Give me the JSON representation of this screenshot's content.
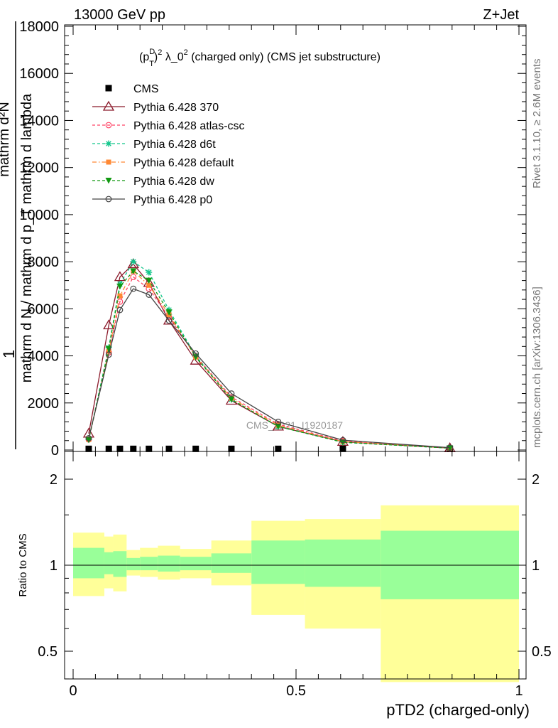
{
  "header": {
    "energy_label": "13000 GeV pp",
    "process_label": "Z+Jet",
    "rivet_label": "Rivet 3.1.10, ≥ 2.6M events",
    "mcplots_label": "mcplots.cern.ch [arXiv:1306.3436]",
    "watermark": "CMS_2021_I1920187"
  },
  "chart_data": [
    {
      "type": "line",
      "title_parts": {
        "p": "(p",
        "sup_d": "D",
        "sub_t": "T",
        "close": ")",
        "sup2": "2",
        "lambda": " λ_0",
        "sup3": "2",
        "rest": " (charged only) (CMS jet substructure)"
      },
      "ylabel_parts": {
        "one": "1",
        "denominator": "mathrm d N / mathrm d p_T mathrm d lambda",
        "numerator": "mathrm d²N"
      },
      "xlim": [
        0,
        1
      ],
      "ylim": [
        0,
        18000
      ],
      "y_ticks": [
        0,
        2000,
        4000,
        6000,
        8000,
        10000,
        12000,
        14000,
        16000,
        18000
      ],
      "y_tick_labels": [
        "0",
        "2000",
        "4000",
        "6000",
        "8000",
        "10000",
        "12000",
        "14000",
        "16000",
        "18000"
      ],
      "legend_position": "top-left",
      "series": [
        {
          "name": "CMS",
          "color": "#000000",
          "style": "data-square",
          "x": [
            0.035,
            0.08,
            0.105,
            0.135,
            0.17,
            0.215,
            0.275,
            0.355,
            0.46,
            0.605,
            0.845
          ],
          "y": [
            50,
            50,
            50,
            50,
            50,
            50,
            50,
            50,
            50,
            50,
            50
          ]
        },
        {
          "name": "Pythia 6.428 370",
          "color": "#8b1a2b",
          "style": "solid-triangle",
          "x": [
            0.035,
            0.08,
            0.105,
            0.135,
            0.17,
            0.215,
            0.275,
            0.355,
            0.46,
            0.605,
            0.845
          ],
          "y": [
            700,
            5300,
            7350,
            7900,
            7100,
            5500,
            3800,
            2100,
            1000,
            350,
            80
          ]
        },
        {
          "name": "Pythia 6.428 atlas-csc",
          "color": "#ff4466",
          "style": "dashed-circle",
          "x": [
            0.035,
            0.08,
            0.105,
            0.135,
            0.17,
            0.215,
            0.275,
            0.355,
            0.46,
            0.605,
            0.845
          ],
          "y": [
            450,
            4150,
            6300,
            7350,
            6850,
            5650,
            4000,
            2250,
            1100,
            380,
            90
          ]
        },
        {
          "name": "Pythia 6.428 d6t",
          "color": "#11c68b",
          "style": "dashed-star",
          "x": [
            0.035,
            0.08,
            0.105,
            0.135,
            0.17,
            0.215,
            0.275,
            0.355,
            0.46,
            0.605,
            0.845
          ],
          "y": [
            450,
            4350,
            7050,
            8000,
            7550,
            5950,
            4000,
            2150,
            1000,
            330,
            80
          ]
        },
        {
          "name": "Pythia 6.428 default",
          "color": "#ff8833",
          "style": "dashdot-square",
          "x": [
            0.035,
            0.08,
            0.105,
            0.135,
            0.17,
            0.215,
            0.275,
            0.355,
            0.46,
            0.605,
            0.845
          ],
          "y": [
            450,
            4200,
            6550,
            7600,
            7000,
            5750,
            3950,
            2200,
            1050,
            360,
            85
          ]
        },
        {
          "name": "Pythia 6.428 dw",
          "color": "#119911",
          "style": "dashed-triangle-down",
          "x": [
            0.035,
            0.08,
            0.105,
            0.135,
            0.17,
            0.215,
            0.275,
            0.355,
            0.46,
            0.605,
            0.845
          ],
          "y": [
            430,
            4300,
            6950,
            7600,
            7200,
            5850,
            3950,
            2150,
            1000,
            330,
            80
          ]
        },
        {
          "name": "Pythia 6.428 p0",
          "color": "#444444",
          "style": "solid-circle",
          "x": [
            0.035,
            0.08,
            0.105,
            0.135,
            0.17,
            0.215,
            0.275,
            0.355,
            0.46,
            0.605,
            0.845
          ],
          "y": [
            500,
            4050,
            5950,
            6850,
            6600,
            5500,
            4100,
            2400,
            1200,
            420,
            100
          ]
        }
      ]
    },
    {
      "type": "area",
      "ylabel": "Ratio to CMS",
      "xlabel": "pTD2 (charged-only)",
      "xlim": [
        0,
        1
      ],
      "ylim": [
        0.35,
        2.3
      ],
      "y_ticks": [
        0.5,
        1,
        2
      ],
      "y_tick_labels": [
        "0.5",
        "1",
        "2"
      ],
      "x_ticks": [
        0,
        0.5,
        1
      ],
      "x_tick_labels": [
        "0",
        "0.5",
        "1"
      ],
      "reference_line": 1,
      "bins": [
        {
          "x0": 0.0,
          "x1": 0.07,
          "yellow": [
            0.78,
            1.3
          ],
          "green": [
            0.9,
            1.15
          ]
        },
        {
          "x0": 0.07,
          "x1": 0.09,
          "yellow": [
            0.83,
            1.26
          ],
          "green": [
            0.93,
            1.11
          ]
        },
        {
          "x0": 0.09,
          "x1": 0.12,
          "yellow": [
            0.81,
            1.28
          ],
          "green": [
            0.91,
            1.12
          ]
        },
        {
          "x0": 0.12,
          "x1": 0.15,
          "yellow": [
            0.92,
            1.13
          ],
          "green": [
            0.96,
            1.06
          ]
        },
        {
          "x0": 0.15,
          "x1": 0.19,
          "yellow": [
            0.91,
            1.15
          ],
          "green": [
            0.96,
            1.07
          ]
        },
        {
          "x0": 0.19,
          "x1": 0.24,
          "yellow": [
            0.89,
            1.17
          ],
          "green": [
            0.95,
            1.08
          ]
        },
        {
          "x0": 0.24,
          "x1": 0.31,
          "yellow": [
            0.9,
            1.14
          ],
          "green": [
            0.96,
            1.07
          ]
        },
        {
          "x0": 0.31,
          "x1": 0.4,
          "yellow": [
            0.85,
            1.22
          ],
          "green": [
            0.94,
            1.1
          ]
        },
        {
          "x0": 0.4,
          "x1": 0.52,
          "yellow": [
            0.67,
            1.43
          ],
          "green": [
            0.86,
            1.22
          ]
        },
        {
          "x0": 0.52,
          "x1": 0.69,
          "yellow": [
            0.6,
            1.45
          ],
          "green": [
            0.84,
            1.23
          ]
        },
        {
          "x0": 0.69,
          "x1": 1.0,
          "yellow": [
            0.39,
            1.62
          ],
          "green": [
            0.76,
            1.32
          ]
        }
      ]
    }
  ],
  "colors": {
    "band_yellow": "#ffff99",
    "band_green": "#99ff99"
  }
}
